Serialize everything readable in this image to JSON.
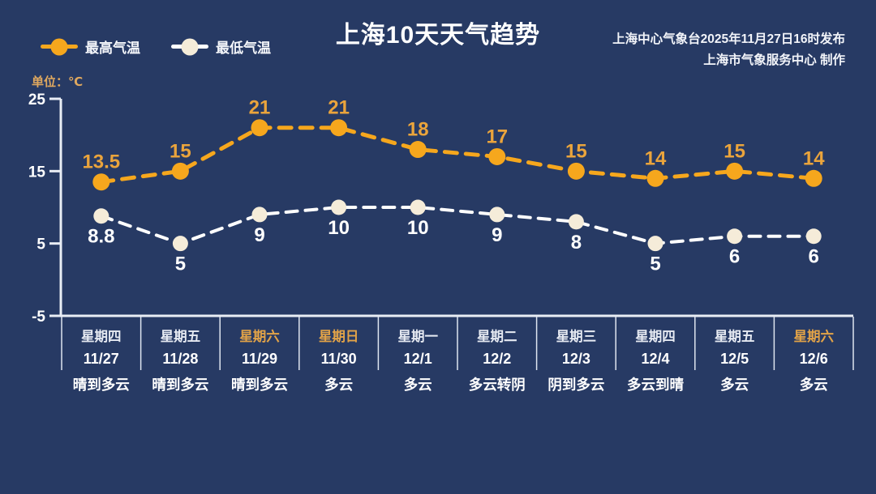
{
  "header": {
    "title": "上海10天天气趋势",
    "issued_by": "上海中心气象台2025年11月27日16时发布",
    "produced_by": "上海市气象服务中心  制作"
  },
  "legend": {
    "max_label": "最高气温",
    "min_label": "最低气温"
  },
  "unit_label": "单位：℃",
  "colors": {
    "background": "#273a64",
    "max_line": "#f6a71d",
    "max_value_label": "#eaa43c",
    "min_line": "#ffffff",
    "min_dot": "#f5ecd9",
    "axis": "#e9edf5",
    "divider": "#dfe5f0",
    "weekend_label": "#e2a348",
    "weekday_label": "#e6eaf2",
    "value_label_min": "#ffffff"
  },
  "chart_data": {
    "type": "line",
    "title": "上海10天天气趋势",
    "ylabel": "单位：℃",
    "ylim": [
      -5,
      25
    ],
    "yticks": [
      25,
      15,
      5,
      -5
    ],
    "grid": false,
    "legend_position": "top-left",
    "categories": [
      "11/27",
      "11/28",
      "11/29",
      "11/30",
      "12/1",
      "12/2",
      "12/3",
      "12/4",
      "12/5",
      "12/6"
    ],
    "series": [
      {
        "name": "最高气温",
        "values": [
          13.5,
          15,
          21,
          21,
          18,
          17,
          15,
          14,
          15,
          14
        ]
      },
      {
        "name": "最低气温",
        "values": [
          8.8,
          5,
          9,
          10,
          10,
          9,
          8,
          5,
          6,
          6
        ]
      }
    ]
  },
  "days": [
    {
      "weekday": "星期四",
      "date": "11/27",
      "condition": "晴到多云",
      "weekend": false
    },
    {
      "weekday": "星期五",
      "date": "11/28",
      "condition": "晴到多云",
      "weekend": false
    },
    {
      "weekday": "星期六",
      "date": "11/29",
      "condition": "晴到多云",
      "weekend": true
    },
    {
      "weekday": "星期日",
      "date": "11/30",
      "condition": "多云",
      "weekend": true
    },
    {
      "weekday": "星期一",
      "date": "12/1",
      "condition": "多云",
      "weekend": false
    },
    {
      "weekday": "星期二",
      "date": "12/2",
      "condition": "多云转阴",
      "weekend": false
    },
    {
      "weekday": "星期三",
      "date": "12/3",
      "condition": "阴到多云",
      "weekend": false
    },
    {
      "weekday": "星期四",
      "date": "12/4",
      "condition": "多云到晴",
      "weekend": false
    },
    {
      "weekday": "星期五",
      "date": "12/5",
      "condition": "多云",
      "weekend": false
    },
    {
      "weekday": "星期六",
      "date": "12/6",
      "condition": "多云",
      "weekend": true
    }
  ]
}
